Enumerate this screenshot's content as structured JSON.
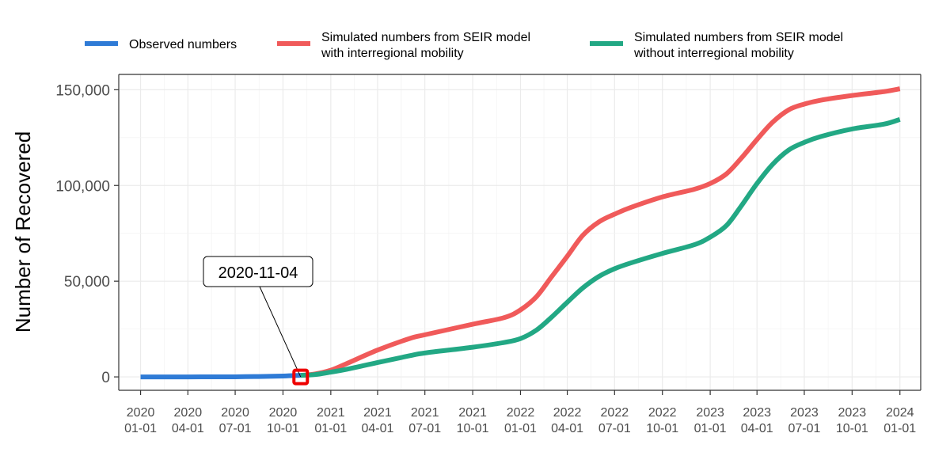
{
  "chart_data": {
    "type": "line",
    "title": "",
    "xlabel": "",
    "ylabel": "Number of Recovered",
    "x_type": "date",
    "xlim": [
      "2019-11-20",
      "2024-02-10"
    ],
    "ylim": [
      -7000,
      158000
    ],
    "grid": true,
    "legend_position": "top",
    "x_ticks": [
      {
        "date": "2020-01-01",
        "line1": "2020",
        "line2": "01-01"
      },
      {
        "date": "2020-04-01",
        "line1": "2020",
        "line2": "04-01"
      },
      {
        "date": "2020-07-01",
        "line1": "2020",
        "line2": "07-01"
      },
      {
        "date": "2020-10-01",
        "line1": "2020",
        "line2": "10-01"
      },
      {
        "date": "2021-01-01",
        "line1": "2021",
        "line2": "01-01"
      },
      {
        "date": "2021-04-01",
        "line1": "2021",
        "line2": "04-01"
      },
      {
        "date": "2021-07-01",
        "line1": "2021",
        "line2": "07-01"
      },
      {
        "date": "2021-10-01",
        "line1": "2021",
        "line2": "10-01"
      },
      {
        "date": "2022-01-01",
        "line1": "2022",
        "line2": "01-01"
      },
      {
        "date": "2022-04-01",
        "line1": "2022",
        "line2": "04-01"
      },
      {
        "date": "2022-07-01",
        "line1": "2022",
        "line2": "07-01"
      },
      {
        "date": "2022-10-01",
        "line1": "2022",
        "line2": "10-01"
      },
      {
        "date": "2023-01-01",
        "line1": "2023",
        "line2": "01-01"
      },
      {
        "date": "2023-04-01",
        "line1": "2023",
        "line2": "04-01"
      },
      {
        "date": "2023-07-01",
        "line1": "2023",
        "line2": "07-01"
      },
      {
        "date": "2023-10-01",
        "line1": "2023",
        "line2": "10-01"
      },
      {
        "date": "2024-01-01",
        "line1": "2024",
        "line2": "01-01"
      }
    ],
    "y_ticks": [
      {
        "value": 0,
        "label": "0"
      },
      {
        "value": 50000,
        "label": "50,000"
      },
      {
        "value": 100000,
        "label": "100,000"
      },
      {
        "value": 150000,
        "label": "150,000"
      }
    ],
    "series": [
      {
        "name_lines": [
          "Observed numbers"
        ],
        "color": "#2f7bd6",
        "points": [
          [
            "2020-01-01",
            0
          ],
          [
            "2020-04-01",
            0
          ],
          [
            "2020-07-01",
            50
          ],
          [
            "2020-08-15",
            200
          ],
          [
            "2020-10-01",
            450
          ],
          [
            "2020-11-04",
            800
          ]
        ]
      },
      {
        "name_lines": [
          "Simulated numbers from SEIR model",
          "with interregional mobility"
        ],
        "color": "#f05a5a",
        "points": [
          [
            "2020-11-04",
            800
          ],
          [
            "2020-12-01",
            1500
          ],
          [
            "2021-01-01",
            3500
          ],
          [
            "2021-02-01",
            7000
          ],
          [
            "2021-04-01",
            14000
          ],
          [
            "2021-06-01",
            20000
          ],
          [
            "2021-07-01",
            22000
          ],
          [
            "2021-10-01",
            27500
          ],
          [
            "2021-12-01",
            31000
          ],
          [
            "2022-01-01",
            35000
          ],
          [
            "2022-02-01",
            42000
          ],
          [
            "2022-03-01",
            52000
          ],
          [
            "2022-04-01",
            63000
          ],
          [
            "2022-05-01",
            74000
          ],
          [
            "2022-06-01",
            81000
          ],
          [
            "2022-07-01",
            85000
          ],
          [
            "2022-08-01",
            88500
          ],
          [
            "2022-10-01",
            94000
          ],
          [
            "2022-12-01",
            98000
          ],
          [
            "2023-01-01",
            101000
          ],
          [
            "2023-02-01",
            106000
          ],
          [
            "2023-03-01",
            114000
          ],
          [
            "2023-04-01",
            124000
          ],
          [
            "2023-05-01",
            133000
          ],
          [
            "2023-06-01",
            139500
          ],
          [
            "2023-07-01",
            142500
          ],
          [
            "2023-08-01",
            144500
          ],
          [
            "2023-10-01",
            147000
          ],
          [
            "2023-12-01",
            149000
          ],
          [
            "2024-01-01",
            150500
          ]
        ]
      },
      {
        "name_lines": [
          "Simulated numbers from SEIR model",
          "without interregional mobility"
        ],
        "color": "#22a884",
        "points": [
          [
            "2020-11-04",
            800
          ],
          [
            "2020-12-01",
            1200
          ],
          [
            "2021-01-01",
            2500
          ],
          [
            "2021-02-01",
            4000
          ],
          [
            "2021-04-01",
            7500
          ],
          [
            "2021-06-01",
            11000
          ],
          [
            "2021-07-01",
            12500
          ],
          [
            "2021-10-01",
            15500
          ],
          [
            "2021-12-01",
            18000
          ],
          [
            "2022-01-01",
            20000
          ],
          [
            "2022-02-01",
            24500
          ],
          [
            "2022-03-01",
            31000
          ],
          [
            "2022-04-01",
            39000
          ],
          [
            "2022-05-01",
            46500
          ],
          [
            "2022-06-01",
            52500
          ],
          [
            "2022-07-01",
            56500
          ],
          [
            "2022-08-01",
            59500
          ],
          [
            "2022-10-01",
            64500
          ],
          [
            "2022-12-01",
            69000
          ],
          [
            "2023-01-01",
            73000
          ],
          [
            "2023-02-01",
            79000
          ],
          [
            "2023-03-01",
            89000
          ],
          [
            "2023-04-01",
            101000
          ],
          [
            "2023-05-01",
            111000
          ],
          [
            "2023-06-01",
            118500
          ],
          [
            "2023-07-01",
            122500
          ],
          [
            "2023-08-01",
            125500
          ],
          [
            "2023-10-01",
            129500
          ],
          [
            "2023-12-01",
            132000
          ],
          [
            "2024-01-01",
            134500
          ]
        ]
      }
    ],
    "annotations": [
      {
        "text": "2020-11-04",
        "date": "2020-11-04",
        "value": 0,
        "marker_color": "#ee0000"
      }
    ]
  }
}
